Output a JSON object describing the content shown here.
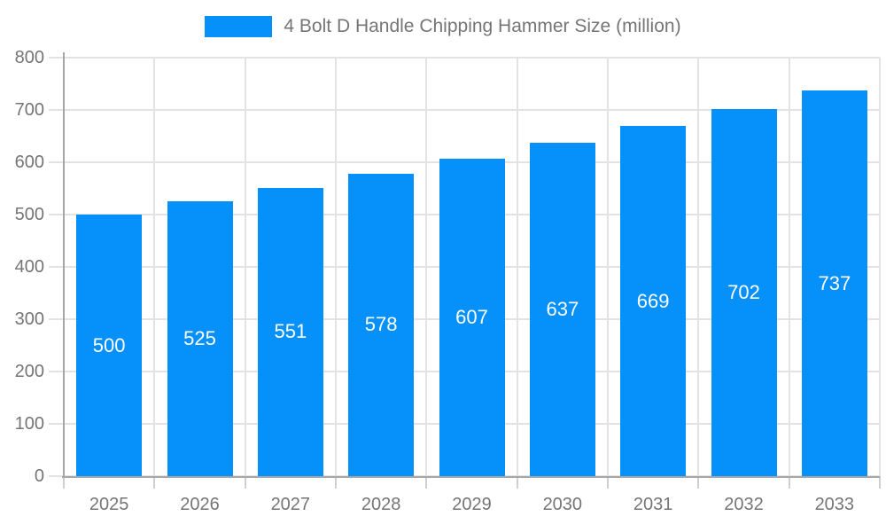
{
  "legend": {
    "series_label": "4 Bolt D Handle Chipping Hammer Size (million)"
  },
  "chart_data": {
    "type": "bar",
    "title": "4 Bolt D Handle Chipping Hammer Size (million)",
    "categories": [
      "2025",
      "2026",
      "2027",
      "2028",
      "2029",
      "2030",
      "2031",
      "2032",
      "2033"
    ],
    "values": [
      500,
      525,
      551,
      578,
      607,
      637,
      669,
      702,
      737
    ],
    "xlabel": "",
    "ylabel": "",
    "ylim": [
      0,
      800
    ],
    "y_ticks": [
      0,
      100,
      200,
      300,
      400,
      500,
      600,
      700,
      800
    ],
    "grid": true,
    "legend_position": "top-center",
    "data_labels": "inside-center",
    "colors": {
      "bar": "#0590FA",
      "grid": "#E3E3E3",
      "axis": "#A6A6A6",
      "tick": "#CFCFCF",
      "tick_label": "#757575",
      "data_label": "#FFFFFF",
      "background": "#FFFFFF"
    }
  }
}
